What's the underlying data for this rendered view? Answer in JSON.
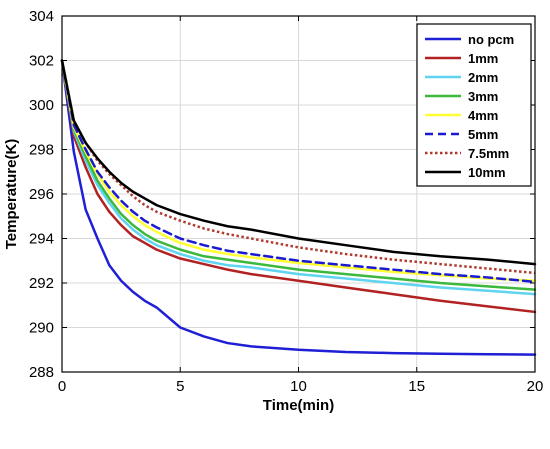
{
  "chart_data": {
    "type": "line",
    "title": "",
    "xlabel": "Time(min)",
    "ylabel": "Temperature(K)",
    "xlim": [
      0,
      20
    ],
    "ylim": [
      288,
      304
    ],
    "xticks": [
      0,
      5,
      10,
      15,
      20
    ],
    "yticks": [
      288,
      290,
      292,
      294,
      296,
      298,
      300,
      302,
      304
    ],
    "grid": true,
    "legend_position": "top-right",
    "series": [
      {
        "name": "no pcm",
        "color": "#1f1fd6",
        "dash": "solid",
        "width": 2.5,
        "x": [
          0,
          0.5,
          1,
          1.5,
          2,
          2.5,
          3,
          3.5,
          4,
          5,
          6,
          7,
          8,
          10,
          12,
          14,
          16,
          18,
          20
        ],
        "y": [
          302.0,
          297.9,
          295.3,
          294.0,
          292.8,
          292.1,
          291.6,
          291.2,
          290.9,
          290.0,
          289.6,
          289.3,
          289.15,
          289.0,
          288.9,
          288.85,
          288.82,
          288.8,
          288.78
        ]
      },
      {
        "name": "1mm",
        "color": "#b22222",
        "dash": "solid",
        "width": 2.5,
        "x": [
          0,
          0.5,
          1,
          1.5,
          2,
          2.5,
          3,
          3.5,
          4,
          5,
          6,
          7,
          8,
          10,
          12,
          14,
          16,
          18,
          20
        ],
        "y": [
          302.0,
          298.6,
          297.2,
          296.0,
          295.2,
          294.6,
          294.1,
          293.8,
          293.5,
          293.1,
          292.85,
          292.6,
          292.4,
          292.1,
          291.8,
          291.5,
          291.2,
          290.95,
          290.7
        ]
      },
      {
        "name": "2mm",
        "color": "#5fd3f0",
        "dash": "solid",
        "width": 2.5,
        "x": [
          0,
          0.5,
          1,
          1.5,
          2,
          2.5,
          3,
          3.5,
          4,
          5,
          6,
          7,
          8,
          10,
          12,
          14,
          16,
          18,
          20
        ],
        "y": [
          302.0,
          298.8,
          297.5,
          296.4,
          295.6,
          294.9,
          294.4,
          294.0,
          293.7,
          293.3,
          293.0,
          292.8,
          292.7,
          292.4,
          292.2,
          292.0,
          291.8,
          291.65,
          291.5
        ]
      },
      {
        "name": "3mm",
        "color": "#3cb83c",
        "dash": "solid",
        "width": 2.5,
        "x": [
          0,
          0.5,
          1,
          1.5,
          2,
          2.5,
          3,
          3.5,
          4,
          5,
          6,
          7,
          8,
          10,
          12,
          14,
          16,
          18,
          20
        ],
        "y": [
          302.0,
          298.9,
          297.7,
          296.6,
          295.8,
          295.1,
          294.6,
          294.2,
          293.9,
          293.5,
          293.2,
          293.05,
          292.9,
          292.6,
          292.4,
          292.2,
          292.0,
          291.85,
          291.7
        ]
      },
      {
        "name": "4mm",
        "color": "#ffff33",
        "dash": "solid",
        "width": 2.5,
        "x": [
          0,
          0.5,
          1,
          1.5,
          2,
          2.5,
          3,
          3.5,
          4,
          5,
          6,
          7,
          8,
          10,
          12,
          14,
          16,
          18,
          20
        ],
        "y": [
          302.0,
          299.0,
          297.9,
          296.9,
          296.1,
          295.5,
          295.0,
          294.6,
          294.3,
          293.8,
          293.5,
          293.3,
          293.15,
          292.9,
          292.7,
          292.5,
          292.35,
          292.2,
          292.1
        ]
      },
      {
        "name": "5mm",
        "color": "#1a1ad0",
        "dash": "dashed",
        "width": 2.5,
        "x": [
          0,
          0.5,
          1,
          1.5,
          2,
          2.5,
          3,
          3.5,
          4,
          5,
          6,
          7,
          8,
          10,
          12,
          14,
          16,
          18,
          20
        ],
        "y": [
          302.0,
          299.1,
          298.0,
          297.0,
          296.3,
          295.7,
          295.2,
          294.8,
          294.5,
          294.0,
          293.7,
          293.45,
          293.3,
          293.0,
          292.8,
          292.6,
          292.4,
          292.25,
          292.05
        ]
      },
      {
        "name": "7.5mm",
        "color": "#b03a2e",
        "dash": "dotted",
        "width": 2.5,
        "x": [
          0,
          0.5,
          1,
          1.5,
          2,
          2.5,
          3,
          3.5,
          4,
          5,
          6,
          7,
          8,
          10,
          12,
          14,
          16,
          18,
          20
        ],
        "y": [
          302.0,
          299.3,
          298.3,
          297.5,
          296.9,
          296.4,
          295.9,
          295.5,
          295.2,
          294.8,
          294.45,
          294.2,
          294.0,
          293.6,
          293.3,
          293.05,
          292.85,
          292.65,
          292.45
        ]
      },
      {
        "name": "10mm",
        "color": "#000000",
        "dash": "solid",
        "width": 2.5,
        "x": [
          0,
          0.5,
          1,
          1.5,
          2,
          2.5,
          3,
          3.5,
          4,
          5,
          6,
          7,
          8,
          10,
          12,
          14,
          16,
          18,
          20
        ],
        "y": [
          302.0,
          299.3,
          298.3,
          297.6,
          297.0,
          296.5,
          296.1,
          295.8,
          295.5,
          295.1,
          294.8,
          294.55,
          294.4,
          294.0,
          293.7,
          293.4,
          293.2,
          293.05,
          292.85
        ]
      }
    ]
  }
}
